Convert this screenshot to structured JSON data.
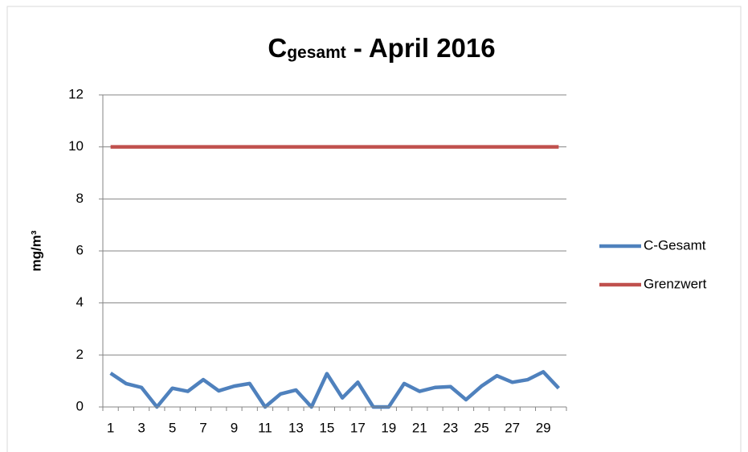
{
  "chart_data": {
    "type": "line",
    "title": [
      "C",
      "gesamt",
      " - April 2016"
    ],
    "ylabel": "mg/m³",
    "categories": [
      "1",
      null,
      "3",
      null,
      "5",
      null,
      "7",
      null,
      "9",
      null,
      "11",
      null,
      "13",
      null,
      "15",
      null,
      "17",
      null,
      "19",
      null,
      "21",
      null,
      "23",
      null,
      "25",
      null,
      "27",
      null,
      "29",
      null
    ],
    "series": [
      {
        "name": "C-Gesamt",
        "color": "#4f81bd",
        "values": [
          1.3,
          0.9,
          0.75,
          0,
          0.72,
          0.6,
          1.05,
          0.62,
          0.8,
          0.9,
          0,
          0.5,
          0.65,
          0,
          1.28,
          0.35,
          0.95,
          0,
          0,
          0.9,
          0.6,
          0.75,
          0.78,
          0.28,
          0.8,
          1.2,
          0.95,
          1.05,
          1.35,
          0.72
        ]
      },
      {
        "name": "Grenzwert",
        "color": "#c0504d",
        "values": [
          10,
          10,
          10,
          10,
          10,
          10,
          10,
          10,
          10,
          10,
          10,
          10,
          10,
          10,
          10,
          10,
          10,
          10,
          10,
          10,
          10,
          10,
          10,
          10,
          10,
          10,
          10,
          10,
          10,
          10
        ]
      }
    ],
    "ylim": [
      0,
      12
    ],
    "yticks": [
      0,
      2,
      4,
      6,
      8,
      10,
      12
    ],
    "grid": true,
    "legend": "right"
  }
}
